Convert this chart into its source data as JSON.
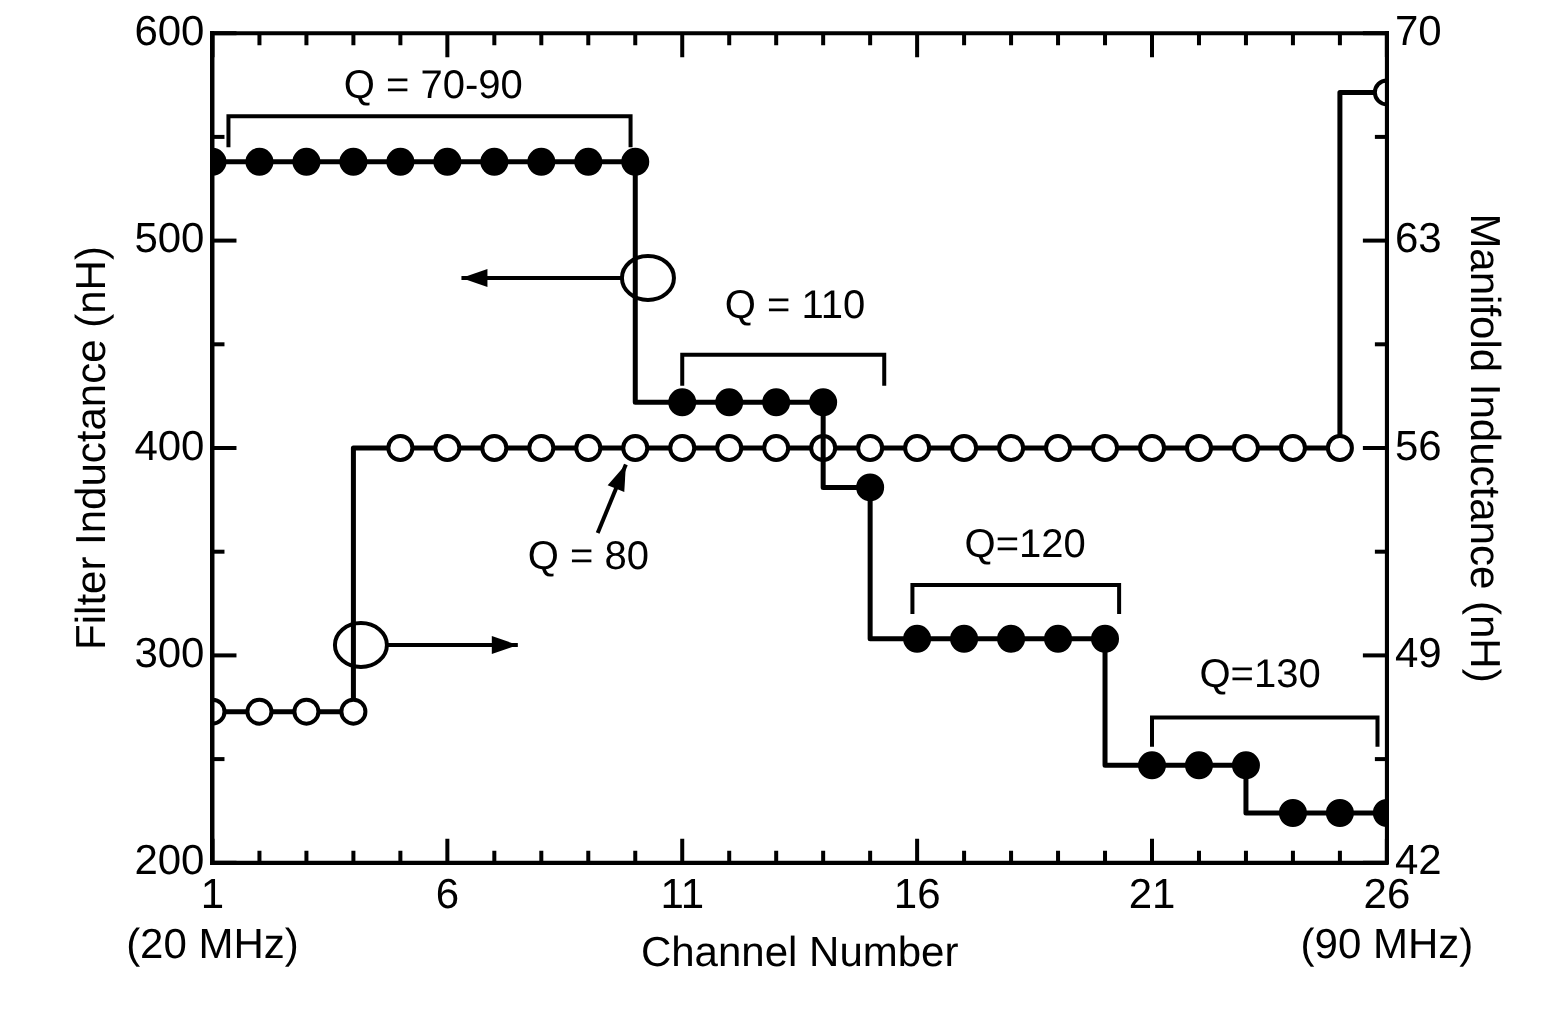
{
  "chart_data": {
    "type": "step",
    "xlabel": "Channel Number",
    "ylabel": "Filter Inductance (nH)",
    "y2label": "Manifold Inductance (nH)",
    "x": [
      1,
      2,
      3,
      4,
      5,
      6,
      7,
      8,
      9,
      10,
      11,
      12,
      13,
      14,
      15,
      16,
      17,
      18,
      19,
      20,
      21,
      22,
      23,
      24,
      25,
      26
    ],
    "series": [
      {
        "color": "#000000",
        "marker": "circle",
        "axis": "y",
        "values": [
          538,
          538,
          538,
          538,
          538,
          538,
          538,
          538,
          538,
          538,
          422,
          422,
          422,
          422,
          381,
          308,
          308,
          308,
          308,
          308,
          247,
          247,
          247,
          224,
          224,
          224
        ]
      },
      {
        "color": "#000000",
        "marker": "open_circle",
        "axis": "y2",
        "values": [
          47.1,
          47.1,
          47.1,
          47.1,
          56,
          56,
          56,
          56,
          56,
          56,
          56,
          56,
          56,
          56,
          56,
          56,
          56,
          56,
          56,
          56,
          56,
          56,
          56,
          56,
          56,
          68
        ]
      }
    ],
    "xlim": [
      1,
      26
    ],
    "xticks": [
      {
        "value": 1,
        "label": "1\n(20 MHz)"
      },
      {
        "value": 2,
        "label": null
      },
      {
        "value": 3,
        "label": null
      },
      {
        "value": 4,
        "label": null
      },
      {
        "value": 5,
        "label": null
      },
      6,
      {
        "value": 7,
        "label": null
      },
      {
        "value": 8,
        "label": null
      },
      {
        "value": 9,
        "label": null
      },
      {
        "value": 10,
        "label": null
      },
      11,
      {
        "value": 12,
        "label": null
      },
      {
        "value": 13,
        "label": null
      },
      {
        "value": 14,
        "label": null
      },
      {
        "value": 15,
        "label": null
      },
      16,
      {
        "value": 17,
        "label": null
      },
      {
        "value": 18,
        "label": null
      },
      {
        "value": 19,
        "label": null
      },
      {
        "value": 20,
        "label": null
      },
      21,
      {
        "value": 22,
        "label": null
      },
      {
        "value": 23,
        "label": null
      },
      {
        "value": 24,
        "label": null
      },
      {
        "value": 25,
        "label": null
      },
      {
        "value": 26,
        "label": "26\n(90 MHz)"
      }
    ],
    "ylim": [
      200,
      600
    ],
    "yticks": [
      200,
      {
        "value": 250,
        "label": null
      },
      300,
      {
        "value": 350,
        "label": null
      },
      400,
      {
        "value": 450,
        "label": null
      },
      500,
      {
        "value": 550,
        "label": null
      },
      600
    ],
    "y2lim": [
      42,
      70
    ],
    "y2ticks": [
      42,
      {
        "value": 45.5,
        "label": null
      },
      49,
      {
        "value": 52.5,
        "label": null
      },
      56,
      {
        "value": 59.5,
        "label": null
      },
      63,
      {
        "value": 66.5,
        "label": null
      },
      70
    ],
    "annotations": [
      "Q = 70-90",
      "Q = 110",
      "Q = 80",
      "Q=120",
      "Q=130"
    ],
    "grid": false,
    "legend": false,
    "line_style": "solid"
  }
}
